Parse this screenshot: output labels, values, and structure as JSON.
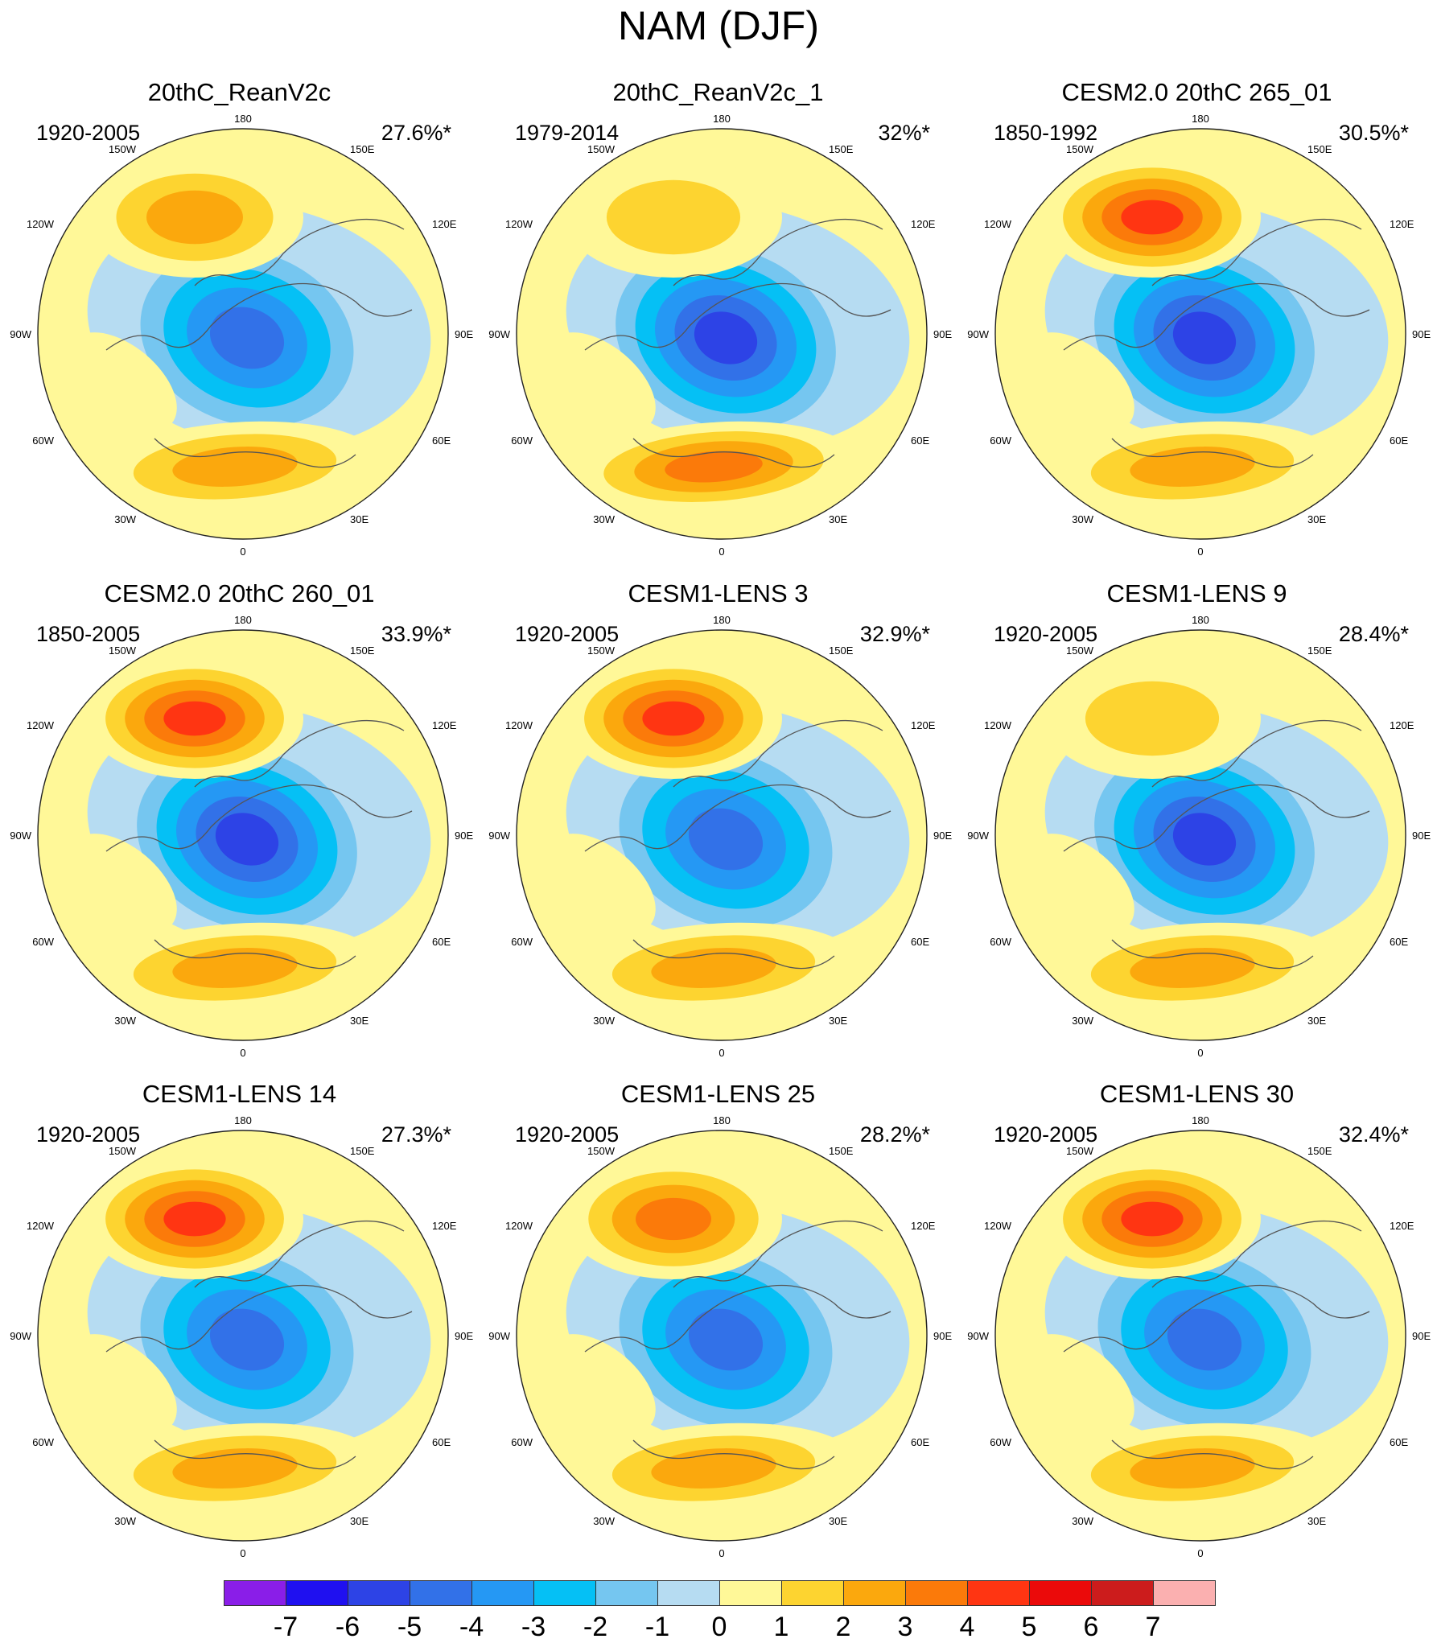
{
  "figure": {
    "title": "NAM (DJF)"
  },
  "longitude_labels": {
    "top": "180",
    "bottom": "0",
    "upper_left": "150W",
    "upper_right": "150E",
    "left_upper": "120W",
    "right_upper": "120E",
    "left_mid": "90W",
    "right_mid": "90E",
    "left_lower": "60W",
    "right_lower": "60E",
    "lower_left": "30W",
    "lower_right": "30E"
  },
  "panels": [
    {
      "title": "20thC_ReanV2c",
      "years": "1920-2005",
      "variance": "27.6%*",
      "icon": "polar-stereographic-map",
      "center_low_value": -5,
      "pacific_high_value": 3,
      "atlantic_high_value": 3
    },
    {
      "title": "20thC_ReanV2c_1",
      "years": "1979-2014",
      "variance": "32%*",
      "icon": "polar-stereographic-map",
      "center_low_value": -6,
      "pacific_high_value": 2,
      "atlantic_high_value": 4
    },
    {
      "title": "CESM2.0 20thC 265_01",
      "years": "1850-1992",
      "variance": "30.5%*",
      "icon": "polar-stereographic-map",
      "center_low_value": -6,
      "pacific_high_value": 5,
      "atlantic_high_value": 3
    },
    {
      "title": "CESM2.0 20thC 260_01",
      "years": "1850-2005",
      "variance": "33.9%*",
      "icon": "polar-stereographic-map",
      "center_low_value": -6,
      "pacific_high_value": 5,
      "atlantic_high_value": 3
    },
    {
      "title": "CESM1-LENS 3",
      "years": "1920-2005",
      "variance": "32.9%*",
      "icon": "polar-stereographic-map",
      "center_low_value": -5,
      "pacific_high_value": 5,
      "atlantic_high_value": 3
    },
    {
      "title": "CESM1-LENS 9",
      "years": "1920-2005",
      "variance": "28.4%*",
      "icon": "polar-stereographic-map",
      "center_low_value": -6,
      "pacific_high_value": 2,
      "atlantic_high_value": 3
    },
    {
      "title": "CESM1-LENS 14",
      "years": "1920-2005",
      "variance": "27.3%*",
      "icon": "polar-stereographic-map",
      "center_low_value": -5,
      "pacific_high_value": 5,
      "atlantic_high_value": 3
    },
    {
      "title": "CESM1-LENS 25",
      "years": "1920-2005",
      "variance": "28.2%*",
      "icon": "polar-stereographic-map",
      "center_low_value": -5,
      "pacific_high_value": 4,
      "atlantic_high_value": 3
    },
    {
      "title": "CESM1-LENS 30",
      "years": "1920-2005",
      "variance": "32.4%*",
      "icon": "polar-stereographic-map",
      "center_low_value": -5,
      "pacific_high_value": 5,
      "atlantic_high_value": 3
    }
  ],
  "colorbar": {
    "levels": [
      -7,
      -6,
      -5,
      -4,
      -3,
      -2,
      -1,
      0,
      1,
      2,
      3,
      4,
      5,
      6,
      7
    ],
    "labels": [
      "-7",
      "-6",
      "-5",
      "-4",
      "-3",
      "-2",
      "-1",
      "0",
      "1",
      "2",
      "3",
      "4",
      "5",
      "6",
      "7"
    ],
    "colors": [
      "#8a1ee8",
      "#1f10f0",
      "#2d43e6",
      "#3271e8",
      "#2598f4",
      "#05c0f5",
      "#75c6f0",
      "#b6dcf2",
      "#fff898",
      "#fdd430",
      "#fba80d",
      "#fb7a0a",
      "#ff3512",
      "#eb0a0a",
      "#cc1c1c",
      "#fbb0b0"
    ]
  }
}
